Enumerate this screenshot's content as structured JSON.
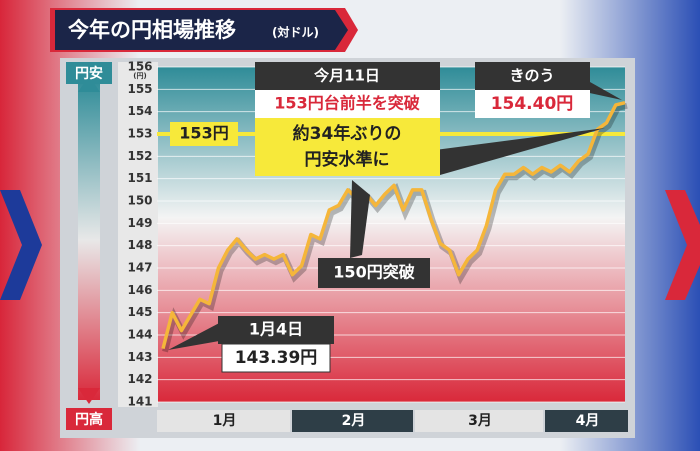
{
  "chart_data": {
    "type": "line",
    "title": "今年の円相場推移",
    "subtitle": "(対ドル)",
    "y_unit": "(円)",
    "top_label": "円安",
    "bottom_label": "円高",
    "months": [
      "1月",
      "2月",
      "3月",
      "4月"
    ],
    "values": [
      143.39,
      145.0,
      144.2,
      144.9,
      145.6,
      145.4,
      147.0,
      147.8,
      148.3,
      147.8,
      147.4,
      147.6,
      147.4,
      147.6,
      146.7,
      147.1,
      148.5,
      148.3,
      149.6,
      149.8,
      150.5,
      150.1,
      150.3,
      149.8,
      150.3,
      150.7,
      149.6,
      150.5,
      150.5,
      149.2,
      148.1,
      147.8,
      146.7,
      147.4,
      147.8,
      148.9,
      150.5,
      151.2,
      151.2,
      151.5,
      151.2,
      151.5,
      151.3,
      151.6,
      151.3,
      151.8,
      152.1,
      153.2,
      153.5,
      154.3,
      154.4
    ],
    "color": "#f5b63a",
    "ylim": [
      141,
      156
    ],
    "yticks": [
      141,
      142,
      143,
      144,
      145,
      146,
      147,
      148,
      149,
      150,
      151,
      152,
      153,
      154,
      155,
      156
    ],
    "reference_line": {
      "value": 153,
      "label": "153円"
    },
    "annotations": {
      "first": {
        "date": "1月4日",
        "value": "143.39円"
      },
      "crossing": "150円突破",
      "month_day": "今月11日",
      "headline": "153円台前半を突破",
      "line1": "約34年ぶりの",
      "line2": "円安水準に",
      "yesterday": "きのう",
      "yesterday_value": "154.40円"
    }
  }
}
